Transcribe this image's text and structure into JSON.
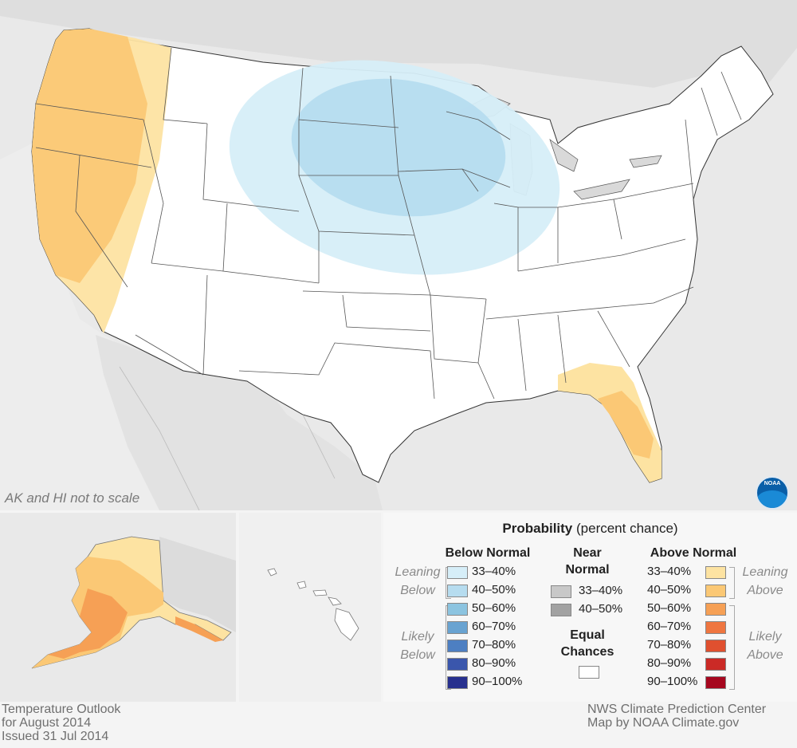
{
  "map": {
    "scale_note": "AK and HI not to scale",
    "logo_text": "NOAA"
  },
  "legend": {
    "title_bold": "Probability",
    "title_rest": "(percent chance)",
    "below_heading": "Below Normal",
    "near_heading_1": "Near",
    "near_heading_2": "Normal",
    "above_heading": "Above Normal",
    "leaning_below_1": "Leaning",
    "leaning_below_2": "Below",
    "likely_below_1": "Likely",
    "likely_below_2": "Below",
    "leaning_above_1": "Leaning",
    "leaning_above_2": "Above",
    "likely_above_1": "Likely",
    "likely_above_2": "Above",
    "equal_1": "Equal",
    "equal_2": "Chances",
    "below": [
      {
        "label": "33–40%",
        "color": "#d6eef8"
      },
      {
        "label": "40–50%",
        "color": "#b6dcef"
      },
      {
        "label": "50–60%",
        "color": "#8cc4e0"
      },
      {
        "label": "60–70%",
        "color": "#69a3d1"
      },
      {
        "label": "70–80%",
        "color": "#4d7fc2"
      },
      {
        "label": "80–90%",
        "color": "#3a56ac"
      },
      {
        "label": "90–100%",
        "color": "#27308e"
      }
    ],
    "near": [
      {
        "label": "33–40%",
        "color": "#c8c8c8"
      },
      {
        "label": "40–50%",
        "color": "#a2a2a2"
      }
    ],
    "above": [
      {
        "label": "33–40%",
        "color": "#fde3a2"
      },
      {
        "label": "40–50%",
        "color": "#fbc875"
      },
      {
        "label": "50–60%",
        "color": "#f6a055"
      },
      {
        "label": "60–70%",
        "color": "#ef7640"
      },
      {
        "label": "70–80%",
        "color": "#e0502f"
      },
      {
        "label": "80–90%",
        "color": "#cb2a26"
      },
      {
        "label": "90–100%",
        "color": "#a6071f"
      }
    ],
    "equal_color": "#ffffff"
  },
  "footer": {
    "left_1": "Temperature Outlook",
    "left_2": "for August 2014",
    "left_3": "Issued 31 Jul 2014",
    "right_1": "NWS Climate Prediction Center",
    "right_2": "Map by NOAA Climate.gov"
  }
}
